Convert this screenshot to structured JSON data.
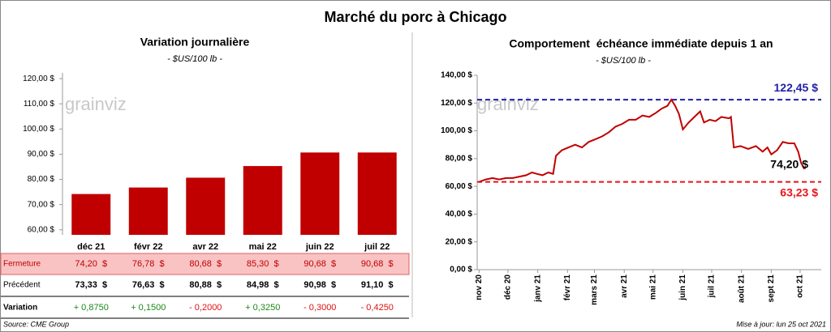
{
  "title": "Marché du porc à Chicago",
  "logo": "grainviz",
  "source": "Source: CME Group",
  "updated": "Mise à jour: lun 25 oct 2021",
  "chart_data": [
    {
      "type": "bar",
      "title": "Variation journalière",
      "subtitle": "- $US/100 lb -",
      "categories": [
        "déc 21",
        "févr 22",
        "avr 22",
        "mai 22",
        "juin 22",
        "juil 22"
      ],
      "values": [
        74.2,
        76.78,
        80.68,
        85.3,
        90.68,
        90.68
      ],
      "color": "#c00000",
      "ylim": [
        58,
        121
      ],
      "yticks": [
        {
          "value": 60,
          "label": "60,00 $"
        },
        {
          "value": 70,
          "label": "70,00 $"
        },
        {
          "value": 80,
          "label": "80,00 $"
        },
        {
          "value": 90,
          "label": "90,00 $"
        },
        {
          "value": 100,
          "label": "100,00 $"
        },
        {
          "value": 110,
          "label": "110,00 $"
        },
        {
          "value": 120,
          "label": "120,00 $"
        }
      ],
      "grid": false
    },
    {
      "type": "line",
      "title": "Comportement  échéance immédiate depuis 1 an",
      "subtitle": "- $US/100 lb -",
      "xlim": [
        -2,
        356
      ],
      "ylim": [
        0,
        140
      ],
      "grid": false,
      "xticks": [
        {
          "value": 0,
          "label": "nov 20"
        },
        {
          "value": 30,
          "label": "déc 20"
        },
        {
          "value": 61,
          "label": "janv 21"
        },
        {
          "value": 92,
          "label": "févr 21"
        },
        {
          "value": 120,
          "label": "mars 21"
        },
        {
          "value": 151,
          "label": "avr 21"
        },
        {
          "value": 181,
          "label": "mai 21"
        },
        {
          "value": 212,
          "label": "juin 21"
        },
        {
          "value": 242,
          "label": "juil 21"
        },
        {
          "value": 273,
          "label": "août 21"
        },
        {
          "value": 304,
          "label": "sept 21"
        },
        {
          "value": 334,
          "label": "oct 21"
        }
      ],
      "yticks": [
        {
          "value": 0,
          "label": "0,00 $"
        },
        {
          "value": 20,
          "label": "20,00 $"
        },
        {
          "value": 40,
          "label": "40,00 $"
        },
        {
          "value": 60,
          "label": "60,00 $"
        },
        {
          "value": 80,
          "label": "80,00 $"
        },
        {
          "value": 100,
          "label": "100,00 $"
        },
        {
          "value": 120,
          "label": "120,00 $"
        },
        {
          "value": 140,
          "label": "140,00 $"
        }
      ],
      "series": [
        {
          "color": "#c00000",
          "x": [
            0,
            7,
            14,
            21,
            28,
            35,
            42,
            49,
            55,
            60,
            66,
            72,
            77,
            80,
            86,
            93,
            100,
            107,
            114,
            121,
            128,
            135,
            142,
            149,
            156,
            163,
            170,
            177,
            184,
            190,
            196,
            200,
            204,
            208,
            212,
            218,
            224,
            230,
            234,
            240,
            246,
            252,
            260,
            262,
            265,
            272,
            280,
            288,
            295,
            300,
            304,
            310,
            316,
            322,
            328,
            332,
            335,
            338,
            340
          ],
          "values": [
            63.23,
            65,
            66,
            65,
            66,
            66,
            67,
            68,
            70,
            69,
            68,
            70,
            69,
            82,
            86,
            88,
            90,
            88,
            92,
            94,
            96,
            99,
            103,
            105,
            108,
            108,
            111,
            110,
            113,
            116,
            118,
            122.45,
            118,
            112,
            101,
            106,
            110,
            114,
            106,
            108,
            107,
            110,
            109,
            110,
            88,
            89,
            87,
            89,
            85,
            88,
            83,
            86,
            92,
            91,
            91,
            85,
            77,
            73,
            74.2
          ]
        }
      ],
      "reference_lines": [
        {
          "value": 122.45,
          "label": "122,45 $",
          "color": "#1f1fa8"
        },
        {
          "value": 63.23,
          "label": "63,23 $",
          "color": "#e8141c"
        }
      ],
      "end_label": {
        "value": 74.2,
        "label": "74,20 $"
      }
    }
  ],
  "table": {
    "rows": [
      {
        "label": "Fermeture",
        "cells": [
          "74,20  $",
          "76,78  $",
          "80,68  $",
          "85,30  $",
          "90,68  $",
          "90,68  $"
        ]
      },
      {
        "label": "Précédent",
        "cells": [
          "73,33  $",
          "76,63  $",
          "80,88  $",
          "84,98  $",
          "90,98  $",
          "91,10  $"
        ]
      },
      {
        "label": "Variation",
        "cells": [
          "+ 0,8750",
          "+ 0,1500",
          "- 0,2000",
          "+ 0,3250",
          "- 0,3000",
          "- 0,4250"
        ]
      }
    ]
  }
}
